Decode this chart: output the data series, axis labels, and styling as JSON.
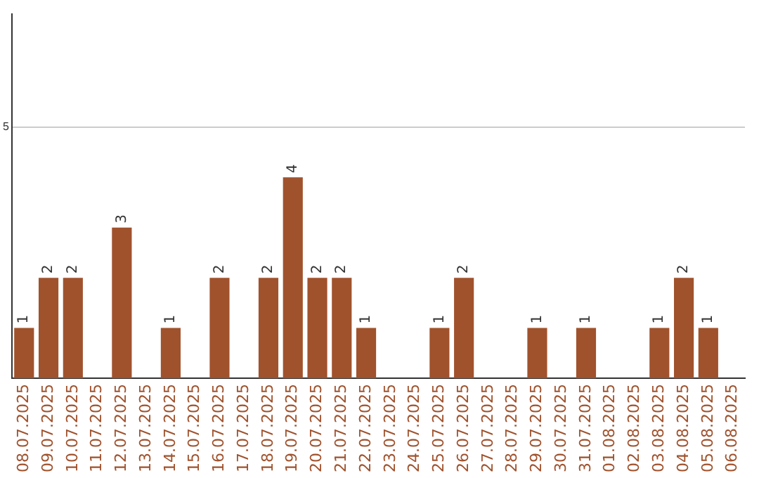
{
  "chart_data": {
    "type": "bar",
    "categories": [
      "08.07.2025",
      "09.07.2025",
      "10.07.2025",
      "11.07.2025",
      "12.07.2025",
      "13.07.2025",
      "14.07.2025",
      "15.07.2025",
      "16.07.2025",
      "17.07.2025",
      "18.07.2025",
      "19.07.2025",
      "20.07.2025",
      "21.07.2025",
      "22.07.2025",
      "23.07.2025",
      "24.07.2025",
      "25.07.2025",
      "26.07.2025",
      "27.07.2025",
      "28.07.2025",
      "29.07.2025",
      "30.07.2025",
      "31.07.2025",
      "01.08.2025",
      "02.08.2025",
      "03.08.2025",
      "04.08.2025",
      "05.08.2025",
      "06.08.2025"
    ],
    "values": [
      1,
      2,
      2,
      0,
      3,
      0,
      1,
      0,
      2,
      0,
      2,
      4,
      2,
      2,
      1,
      0,
      0,
      1,
      2,
      0,
      0,
      1,
      0,
      1,
      0,
      0,
      1,
      2,
      1,
      0
    ],
    "value_labels": [
      "1",
      "2",
      "2",
      null,
      "3",
      null,
      "1",
      null,
      "2",
      null,
      "2",
      "4",
      "2",
      "2",
      "1",
      null,
      null,
      "1",
      "2",
      null,
      null,
      "1",
      null,
      "1",
      null,
      null,
      "1",
      "2",
      "1",
      null
    ],
    "color": "#a0522d",
    "ylim": [
      0,
      7.25
    ],
    "yticks": [
      5
    ],
    "grid": "y",
    "legend": false
  }
}
